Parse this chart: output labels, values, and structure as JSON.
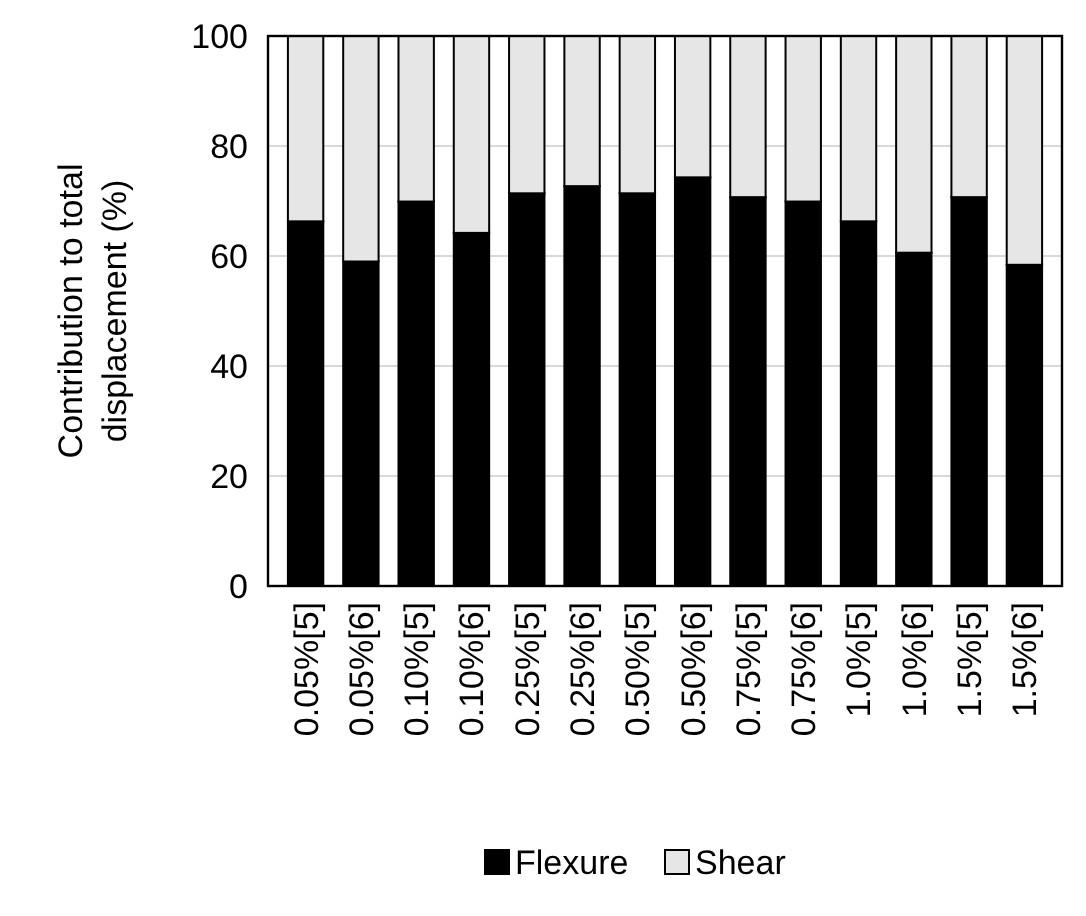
{
  "chart_data": {
    "type": "bar",
    "stacked": true,
    "ylabel": "Contribution to total displacement (%)",
    "categories": [
      "0.05%[5]",
      "0.05%[6]",
      "0.10%[5]",
      "0.10%[6]",
      "0.25%[5]",
      "0.25%[6]",
      "0.50%[5]",
      "0.50%[6]",
      "0.75%[5]",
      "0.75%[6]",
      "1.0%[5]",
      "1.0%[6]",
      "1.5%[5]",
      "1.5%[6]"
    ],
    "series": [
      {
        "name": "Flexure",
        "color": "#000000",
        "values": [
          66.3,
          59.0,
          69.9,
          64.2,
          71.4,
          72.7,
          71.4,
          74.3,
          70.7,
          69.9,
          66.3,
          60.6,
          70.7,
          58.4
        ]
      },
      {
        "name": "Shear",
        "color": "#e6e6e6",
        "values": [
          33.7,
          41.0,
          30.1,
          35.8,
          28.6,
          27.3,
          28.6,
          25.7,
          29.3,
          30.1,
          33.7,
          39.4,
          29.3,
          41.6
        ]
      }
    ],
    "ylim": [
      0,
      100
    ],
    "yticks": [
      0,
      20,
      40,
      60,
      80,
      100
    ],
    "grid": "y",
    "legend": "bottom"
  }
}
